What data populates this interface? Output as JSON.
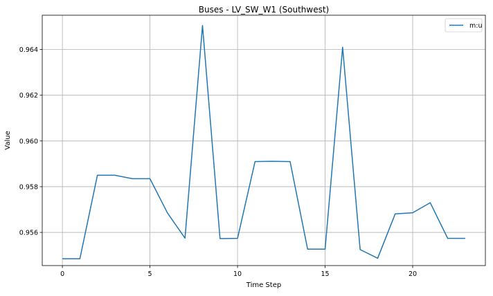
{
  "chart_data": {
    "type": "line",
    "title": "Buses - LV_SW_W1 (Southwest)",
    "xlabel": "Time Step",
    "ylabel": "Value",
    "xlim": [
      -1.15,
      24.15
    ],
    "ylim": [
      0.95455,
      0.9655
    ],
    "xticks": [
      0,
      5,
      10,
      15,
      20
    ],
    "yticks": [
      0.956,
      0.958,
      0.96,
      0.962,
      0.964
    ],
    "ytick_labels": [
      "0.956",
      "0.958",
      "0.960",
      "0.962",
      "0.964"
    ],
    "grid": true,
    "legend_position": "top-right",
    "series": [
      {
        "name": "m:u",
        "color": "#1f77b4",
        "x": [
          0,
          1,
          2,
          3,
          4,
          5,
          6,
          7,
          8,
          9,
          10,
          11,
          12,
          13,
          14,
          15,
          16,
          17,
          18,
          19,
          20,
          21,
          22,
          23
        ],
        "y": [
          0.95485,
          0.95485,
          0.9585,
          0.9585,
          0.95835,
          0.95835,
          0.95685,
          0.95575,
          0.96505,
          0.95573,
          0.95574,
          0.9591,
          0.95911,
          0.9591,
          0.95527,
          0.95527,
          0.9641,
          0.95525,
          0.95487,
          0.95681,
          0.95686,
          0.9573,
          0.95574,
          0.95574
        ]
      }
    ]
  }
}
